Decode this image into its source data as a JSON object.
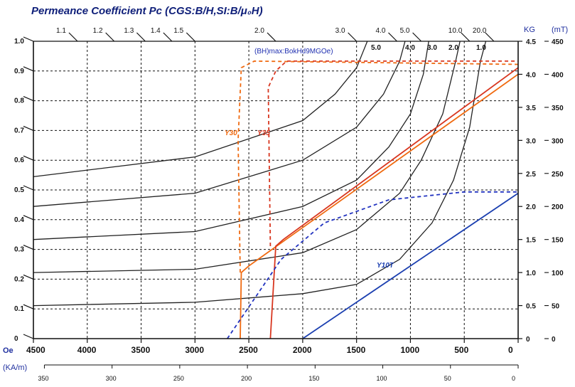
{
  "title": "Permeance  Coefficient  Pc  (CGS:B/H,SI:B/μ₀H)",
  "colors": {
    "title": "#10207a",
    "axis": "#111111",
    "grid": "#111111",
    "pc_curves": "#222222",
    "y30": "#f06a10",
    "y35": "#d8361f",
    "y10t": "#1b3fb0",
    "bhmax": "#2233c0",
    "kg_unit": "#1f2f9f"
  },
  "chart_data": {
    "type": "line",
    "xlabel": "Oe",
    "x_secondary_label": "(KA/m)",
    "xlim": [
      4500,
      0
    ],
    "ylim_left": [
      0,
      1.0
    ],
    "ylim_right_kg": [
      0,
      4.5
    ],
    "ylim_right_mt": [
      0,
      450
    ],
    "grid": true,
    "x_ticks": [
      "4500",
      "4000",
      "3500",
      "3000",
      "2500",
      "2000",
      "1500",
      "1000",
      "500",
      "0"
    ],
    "x_ticks_values": [
      4500,
      4000,
      3500,
      3000,
      2500,
      2000,
      1500,
      1000,
      500,
      0
    ],
    "x_ticks_kam": [
      "350",
      "300",
      "250",
      "200",
      "150",
      "100",
      "50",
      "0"
    ],
    "x_ticks_kam_values": [
      350,
      300,
      250,
      200,
      150,
      100,
      50,
      0
    ],
    "left_ticks": [
      "1.0",
      "0.9",
      "0.8",
      "0.7",
      "0.6",
      "0.5",
      "0.4",
      "0.3",
      "0.2",
      "0.1",
      "0"
    ],
    "left_ticks_values": [
      1.0,
      0.9,
      0.8,
      0.7,
      0.6,
      0.5,
      0.4,
      0.3,
      0.2,
      0.1,
      0
    ],
    "right_kg_label": "KG",
    "right_mt_label": "(mT)",
    "right_kg_ticks": [
      "4.5",
      "4.0",
      "3.5",
      "3.0",
      "2.5",
      "2.0",
      "1.5",
      "1.0",
      "0.5",
      "0"
    ],
    "right_kg_values": [
      4.5,
      4.0,
      3.5,
      3.0,
      2.5,
      2.0,
      1.5,
      1.0,
      0.5,
      0
    ],
    "right_mt_ticks": [
      "450",
      "400",
      "350",
      "300",
      "250",
      "200",
      "150",
      "100",
      "50",
      "0"
    ],
    "right_mt_values": [
      450,
      400,
      350,
      300,
      250,
      200,
      150,
      100,
      50,
      0
    ],
    "pc_top_labels": [
      "1.1",
      "1.2",
      "1.3",
      "1.4",
      "1.5",
      "2.0",
      "3.0",
      "4.0",
      "5.0",
      "10.0",
      "20.0"
    ],
    "pc_top_values": [
      1.1,
      1.2,
      1.3,
      1.4,
      1.5,
      2.0,
      3.0,
      4.0,
      5.0,
      10.0,
      20.0
    ],
    "bhmax_note": "(BH)max:BokHd9MGOe)",
    "bhmax_curve_labels": [
      "5.0",
      "4.0",
      "3.0",
      "2.0",
      "1.0"
    ],
    "bhmax_curves": [
      {
        "label": "1.0",
        "points": [
          [
            4500,
            0.5
          ],
          [
            3000,
            0.55
          ],
          [
            2000,
            0.68
          ],
          [
            1500,
            0.82
          ],
          [
            1100,
            1.2
          ],
          [
            800,
            1.75
          ],
          [
            600,
            2.4
          ],
          [
            450,
            3.2
          ],
          [
            350,
            4.2
          ],
          [
            300,
            4.5
          ]
        ]
      },
      {
        "label": "2.0",
        "points": [
          [
            4500,
            1.0
          ],
          [
            3000,
            1.05
          ],
          [
            2000,
            1.3
          ],
          [
            1500,
            1.65
          ],
          [
            1100,
            2.2
          ],
          [
            900,
            2.7
          ],
          [
            700,
            3.4
          ],
          [
            580,
            4.2
          ],
          [
            540,
            4.5
          ]
        ]
      },
      {
        "label": "3.0",
        "points": [
          [
            4500,
            1.5
          ],
          [
            3000,
            1.62
          ],
          [
            2000,
            2.0
          ],
          [
            1500,
            2.4
          ],
          [
            1200,
            2.9
          ],
          [
            1000,
            3.4
          ],
          [
            880,
            4.0
          ],
          [
            830,
            4.5
          ]
        ]
      },
      {
        "label": "4.0",
        "points": [
          [
            4500,
            2.0
          ],
          [
            3000,
            2.2
          ],
          [
            2000,
            2.7
          ],
          [
            1500,
            3.2
          ],
          [
            1250,
            3.7
          ],
          [
            1100,
            4.2
          ],
          [
            1050,
            4.5
          ]
        ]
      },
      {
        "label": "5.0",
        "points": [
          [
            4500,
            2.45
          ],
          [
            3000,
            2.75
          ],
          [
            2000,
            3.3
          ],
          [
            1700,
            3.7
          ],
          [
            1500,
            4.1
          ],
          [
            1400,
            4.5
          ]
        ]
      }
    ],
    "series": [
      {
        "name": "Y30",
        "style": "solid",
        "points": [
          [
            2580,
            0
          ],
          [
            2570,
            1.0
          ],
          [
            2500,
            1.1
          ],
          [
            0,
            4.0
          ]
        ]
      },
      {
        "name": "Y30",
        "style": "dashed",
        "points": [
          [
            2580,
            1.0
          ],
          [
            2600,
            3.0
          ],
          [
            2570,
            4.1
          ],
          [
            2450,
            4.2
          ],
          [
            0,
            4.15
          ]
        ]
      },
      {
        "name": "Y35",
        "style": "solid",
        "points": [
          [
            2300,
            0
          ],
          [
            2250,
            1.4
          ],
          [
            2180,
            1.5
          ],
          [
            0,
            4.1
          ]
        ]
      },
      {
        "name": "Y35",
        "style": "dashed",
        "points": [
          [
            2300,
            1.4
          ],
          [
            2320,
            3.8
          ],
          [
            2250,
            4.05
          ],
          [
            2150,
            4.2
          ],
          [
            0,
            4.2
          ]
        ]
      },
      {
        "name": "Y10T",
        "style": "solid",
        "points": [
          [
            2000,
            0
          ],
          [
            0,
            2.2
          ]
        ]
      },
      {
        "name": "Y10T",
        "style": "dashed",
        "points": [
          [
            2700,
            0
          ],
          [
            2200,
            1.2
          ],
          [
            1800,
            1.75
          ],
          [
            1200,
            2.1
          ],
          [
            500,
            2.22
          ],
          [
            0,
            2.22
          ]
        ]
      }
    ]
  }
}
